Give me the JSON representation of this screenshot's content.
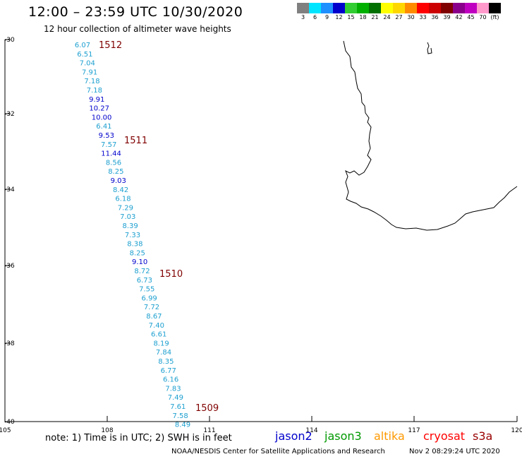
{
  "header": {
    "title": "12:00 – 23:59 UTC 10/30/2020",
    "subtitle": "12 hour collection of altimeter wave heights"
  },
  "legend": {
    "labels": [
      "3",
      "6",
      "9",
      "12",
      "15",
      "18",
      "21",
      "24",
      "27",
      "30",
      "33",
      "36",
      "39",
      "42",
      "45",
      "70",
      "(ft)"
    ],
    "colors": [
      "#808080",
      "#00e5ff",
      "#1e90ff",
      "#0000cd",
      "#32cd32",
      "#00b000",
      "#007000",
      "#ffff00",
      "#ffd700",
      "#ff8c00",
      "#ff0000",
      "#cc0000",
      "#800000",
      "#8b008b",
      "#c000c0",
      "#ff99cc",
      "#000000"
    ]
  },
  "map": {
    "lat_ticks": [
      "-30",
      "-32",
      "-34",
      "-36",
      "-38",
      "-40"
    ],
    "lon_ticks": [
      "105",
      "108",
      "111",
      "114",
      "117",
      "120"
    ],
    "time_labels": [
      "1512",
      "1511",
      "1510",
      "1509"
    ],
    "wave_heights": [
      {
        "value": "6.07",
        "color": "#1ea0d0"
      },
      {
        "value": "6.51",
        "color": "#1ea0d0"
      },
      {
        "value": "7.04",
        "color": "#1ea0d0"
      },
      {
        "value": "7.91",
        "color": "#1ea0d0"
      },
      {
        "value": "7.18",
        "color": "#1ea0d0"
      },
      {
        "value": "7.18",
        "color": "#1ea0d0"
      },
      {
        "value": "9.91",
        "color": "#0000cd"
      },
      {
        "value": "10.27",
        "color": "#0000cd"
      },
      {
        "value": "10.00",
        "color": "#0000cd"
      },
      {
        "value": "6.41",
        "color": "#1ea0d0"
      },
      {
        "value": "9.53",
        "color": "#0000cd"
      },
      {
        "value": "7.57",
        "color": "#1ea0d0"
      },
      {
        "value": "11.44",
        "color": "#0000cd"
      },
      {
        "value": "8.56",
        "color": "#1ea0d0"
      },
      {
        "value": "8.25",
        "color": "#1ea0d0"
      },
      {
        "value": "9.03",
        "color": "#0000cd"
      },
      {
        "value": "8.42",
        "color": "#1ea0d0"
      },
      {
        "value": "6.18",
        "color": "#1ea0d0"
      },
      {
        "value": "7.29",
        "color": "#1ea0d0"
      },
      {
        "value": "7.03",
        "color": "#1ea0d0"
      },
      {
        "value": "8.39",
        "color": "#1ea0d0"
      },
      {
        "value": "7.33",
        "color": "#1ea0d0"
      },
      {
        "value": "8.38",
        "color": "#1ea0d0"
      },
      {
        "value": "8.25",
        "color": "#1ea0d0"
      },
      {
        "value": "9.10",
        "color": "#0000cd"
      },
      {
        "value": "8.72",
        "color": "#1ea0d0"
      },
      {
        "value": "6.73",
        "color": "#1ea0d0"
      },
      {
        "value": "7.55",
        "color": "#1ea0d0"
      },
      {
        "value": "6.99",
        "color": "#1ea0d0"
      },
      {
        "value": "7.72",
        "color": "#1ea0d0"
      },
      {
        "value": "8.67",
        "color": "#1ea0d0"
      },
      {
        "value": "7.40",
        "color": "#1ea0d0"
      },
      {
        "value": "6.61",
        "color": "#1ea0d0"
      },
      {
        "value": "8.19",
        "color": "#1ea0d0"
      },
      {
        "value": "7.84",
        "color": "#1ea0d0"
      },
      {
        "value": "8.35",
        "color": "#1ea0d0"
      },
      {
        "value": "6.77",
        "color": "#1ea0d0"
      },
      {
        "value": "6.16",
        "color": "#1ea0d0"
      },
      {
        "value": "7.83",
        "color": "#1ea0d0"
      },
      {
        "value": "7.49",
        "color": "#1ea0d0"
      },
      {
        "value": "7.61",
        "color": "#1ea0d0"
      },
      {
        "value": "7.58",
        "color": "#1ea0d0"
      },
      {
        "value": "8.49",
        "color": "#1ea0d0"
      }
    ]
  },
  "footer": {
    "note": "note:  1) Time is in UTC;  2) SWH is in feet",
    "satellites": [
      {
        "name": "jason2",
        "color": "#0000cc"
      },
      {
        "name": "jason3",
        "color": "#009900"
      },
      {
        "name": "altika",
        "color": "#ff9900"
      },
      {
        "name": "cryosat",
        "color": "#ff0000"
      },
      {
        "name": "s3a",
        "color": "#990000"
      }
    ],
    "credit": "NOAA/NESDIS Center for Satellite Applications and Research",
    "timestamp": "Nov  2 08:29:24 UTC 2020"
  }
}
